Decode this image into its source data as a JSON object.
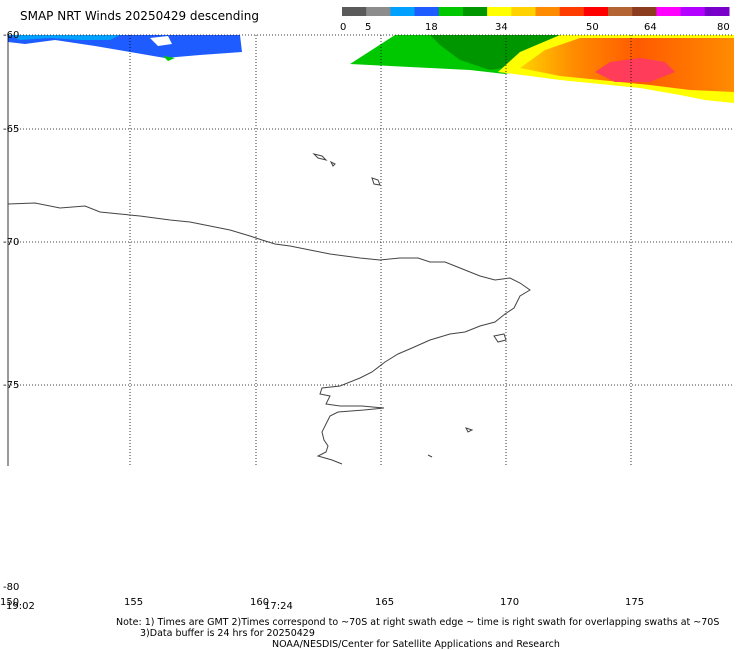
{
  "title": "SMAP NRT Winds  20250429 descending",
  "legend": {
    "ticks": [
      "0",
      "5",
      "18",
      "34",
      "50",
      "64",
      "80"
    ],
    "colors": [
      "#5a5a5a",
      "#8c8c8c",
      "#00a0ff",
      "#1e5cff",
      "#00c800",
      "#009600",
      "#ffff00",
      "#ffd200",
      "#ff8c00",
      "#ff3c00",
      "#ff0000",
      "#b46432",
      "#8c3c1e",
      "#ff00ff",
      "#b400ff",
      "#7800c8"
    ]
  },
  "axes": {
    "lat_labels": [
      "-60",
      "-65",
      "-70",
      "-75",
      "-80"
    ],
    "lon_labels": [
      "150",
      "155",
      "160",
      "165",
      "170",
      "175"
    ]
  },
  "times": [
    "19:02",
    "17:24"
  ],
  "notes": {
    "line1": "Note: 1) Times are GMT 2)Times correspond to ~70S at right swath edge ~ time is right swath for overlapping swaths at ~70S",
    "line2": "3)Data buffer is 24 hrs for 20250429",
    "line3": "NOAA/NESDIS/Center for Satellite Applications and Research"
  }
}
